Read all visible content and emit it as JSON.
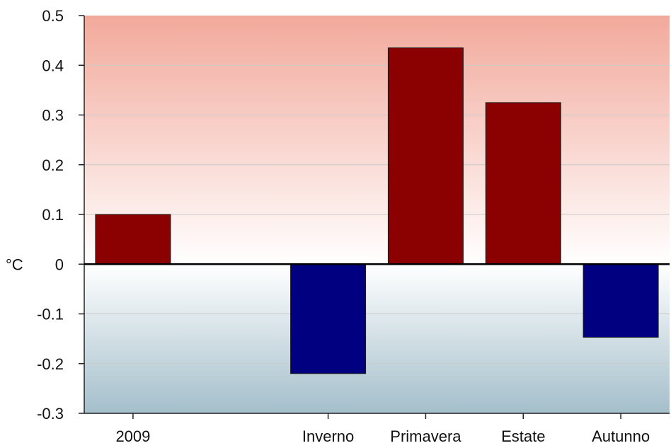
{
  "chart_data": {
    "type": "bar",
    "title": "",
    "xlabel": "",
    "ylabel": "°C",
    "ylim": [
      -0.3,
      0.5
    ],
    "yticks": [
      {
        "value": 0.5,
        "label": "0.5"
      },
      {
        "value": 0.4,
        "label": "0.4"
      },
      {
        "value": 0.3,
        "label": "0.3"
      },
      {
        "value": 0.2,
        "label": "0.2"
      },
      {
        "value": 0.1,
        "label": "0.1"
      },
      {
        "value": 0,
        "label": "0"
      },
      {
        "value": -0.1,
        "label": "-0.1"
      },
      {
        "value": -0.2,
        "label": "-0.2"
      },
      {
        "value": -0.3,
        "label": "-0.3"
      }
    ],
    "grid": true,
    "categories": [
      "2009",
      "",
      "Inverno",
      "Primavera",
      "Estate",
      "Autunno"
    ],
    "values": [
      0.1,
      null,
      -0.22,
      0.435,
      0.325,
      -0.147
    ],
    "colors": {
      "positive": "#8b0000",
      "negative": "#000080",
      "background_warm": "#f2a99b",
      "background_cool": "#a4bfcb",
      "gridline": "#c9c9c9"
    }
  }
}
